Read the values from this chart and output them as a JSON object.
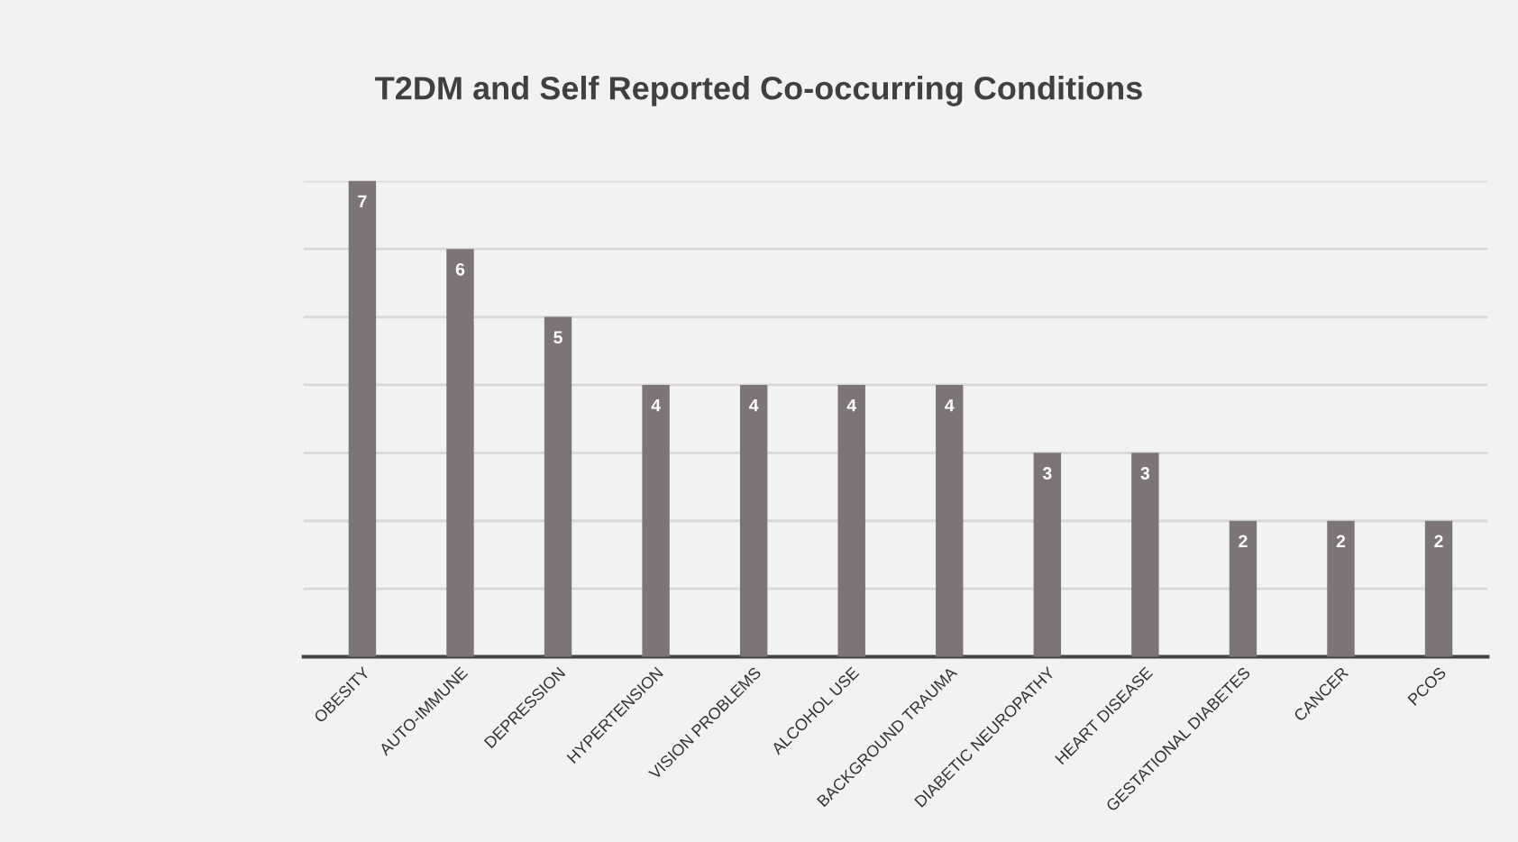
{
  "chart_data": {
    "type": "bar",
    "title": "T2DM and Self Reported Co-occurring Conditions",
    "categories": [
      "OBESITY",
      "AUTO-IMMUNE",
      "DEPRESSION",
      "HYPERTENSION",
      "VISION PROBLEMS",
      "ALCOHOL USE",
      "BACKGROUND TRAUMA",
      "DIABETIC NEUROPATHY",
      "HEART DISEASE",
      "GESTATIONAL DIABETES",
      "CANCER",
      "PCOS"
    ],
    "values": [
      7,
      6,
      5,
      4,
      4,
      4,
      4,
      3,
      3,
      2,
      2,
      2
    ],
    "color": "#7d7575",
    "ylim": [
      0,
      7
    ],
    "yticks": [
      {
        "value": 1,
        "label": null
      },
      {
        "value": 2,
        "label": null
      },
      {
        "value": 3,
        "label": null
      },
      {
        "value": 4,
        "label": null
      },
      {
        "value": 5,
        "label": null
      },
      {
        "value": 6,
        "label": null
      },
      {
        "value": 7,
        "label": null
      }
    ],
    "tick_labels": "x",
    "grid": "y",
    "data_labels": true
  }
}
